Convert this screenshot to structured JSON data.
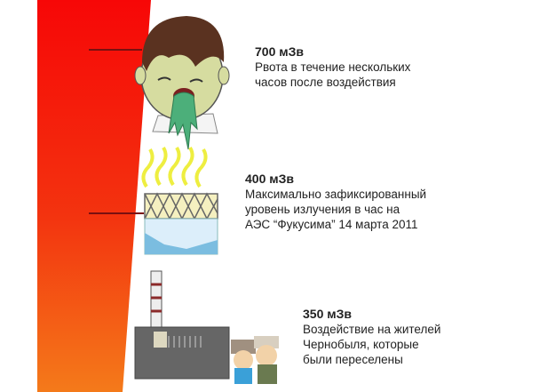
{
  "colors": {
    "scale_top": "#f70707",
    "scale_bottom": "#f47a1a",
    "marker": "#7a1010"
  },
  "items": [
    {
      "dose": "700 мЗв",
      "lines": [
        "Рвота в течение нескольких",
        "часов после воздействия"
      ],
      "icon": "vomiting-boy-icon"
    },
    {
      "dose": "400 мЗв",
      "lines": [
        "Максимально зафиксированный",
        "уровень излучения в час на",
        "АЭС “Фукусима” 14 марта 2011"
      ],
      "icon": "fukushima-reactor-icon"
    },
    {
      "dose": "350 мЗв",
      "lines": [
        "Воздействие на жителей",
        "Чернобыля, которые",
        "были переселены"
      ],
      "icon": "chernobyl-plant-icon"
    }
  ]
}
